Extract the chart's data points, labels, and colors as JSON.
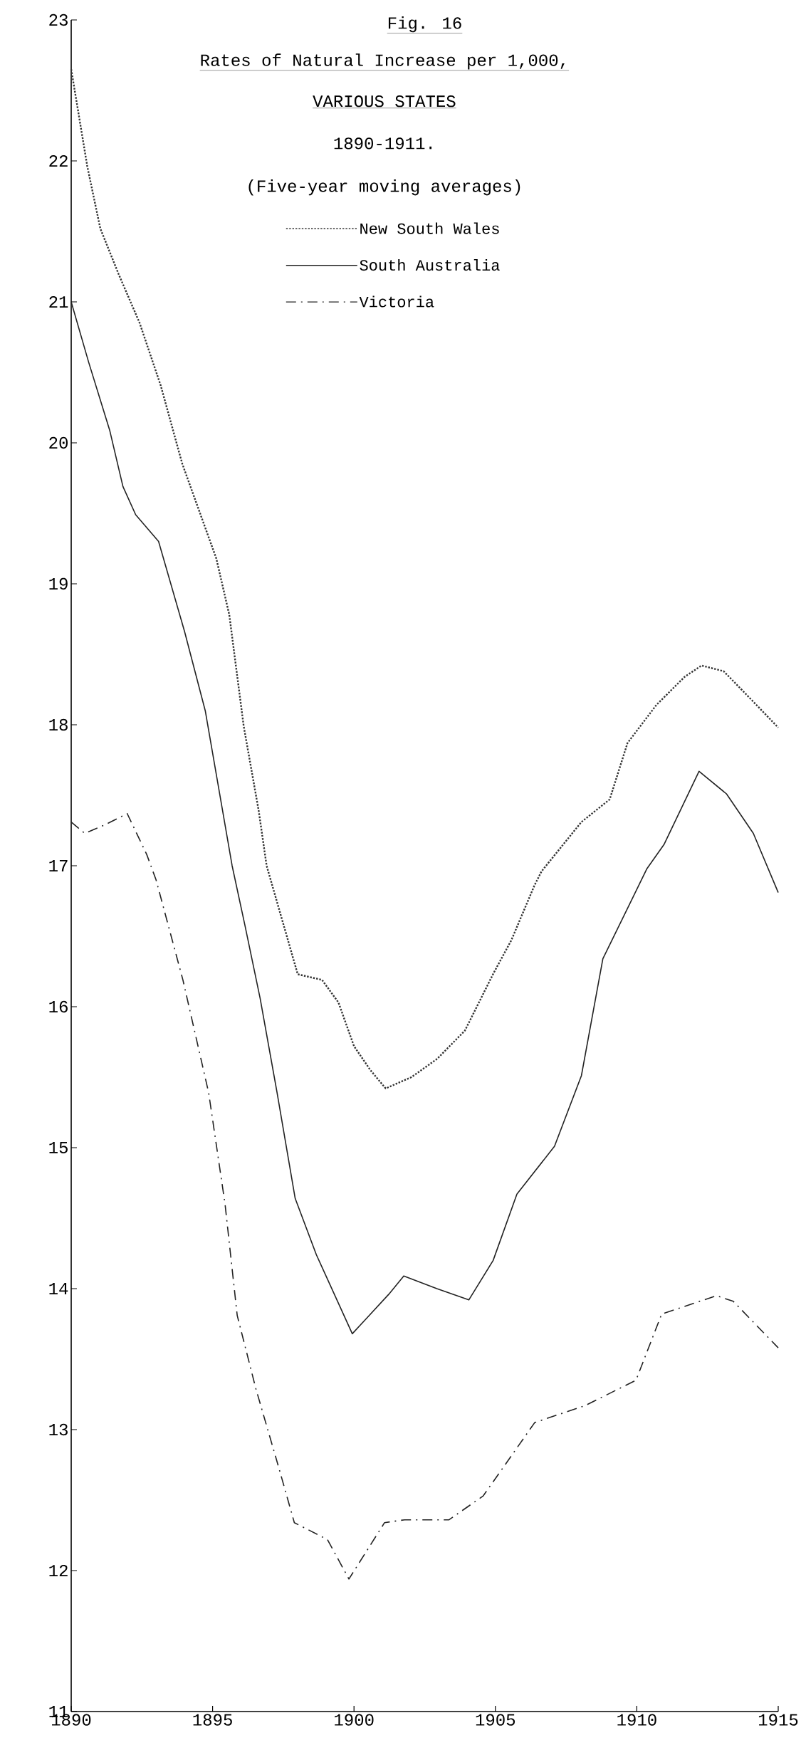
{
  "chart_data": {
    "type": "line",
    "title": "Rates of Natural Increase per 1,000,",
    "subtitle": "VARIOUS STATES",
    "annotations": [
      "Fig. 16",
      "1890-1911.",
      "(Five-year moving averages)"
    ],
    "xlim": [
      1890,
      1915
    ],
    "xticks": [
      1890,
      1895,
      1900,
      1905,
      1910,
      1915
    ],
    "ylim": [
      11,
      23
    ],
    "yticks": [
      11,
      12,
      13,
      14,
      15,
      16,
      17,
      18,
      19,
      20,
      21,
      22,
      23
    ],
    "grid": false,
    "legend": "top",
    "marker": "none",
    "series": [
      {
        "name": "New South Wales",
        "color": "#333333",
        "line_style": "dotted",
        "x": [
          1890,
          1890.57,
          1891.03,
          1891.67,
          1892.42,
          1893.16,
          1893.93,
          1895.13,
          1895.59,
          1896.1,
          1896.63,
          1896.91,
          1898.01,
          1898.87,
          1899.45,
          1900.0,
          1900.58,
          1901.12,
          1902.03,
          1902.94,
          1903.92,
          1904.94,
          1905.56,
          1906.38,
          1906.63,
          1908.04,
          1909.04,
          1909.67,
          1910.69,
          1911.69,
          1912.29,
          1913.07,
          1914.04,
          1915.0
        ],
        "values": [
          22.65,
          21.96,
          21.52,
          21.2,
          20.85,
          20.41,
          19.85,
          19.18,
          18.78,
          17.99,
          17.39,
          17.0,
          16.23,
          16.19,
          16.03,
          15.72,
          15.55,
          15.42,
          15.5,
          15.63,
          15.83,
          16.24,
          16.47,
          16.86,
          16.96,
          17.31,
          17.47,
          17.87,
          18.14,
          18.34,
          18.42,
          18.38,
          18.18,
          17.98
        ]
      },
      {
        "name": "South Australia",
        "color": "#222222",
        "line_style": "solid",
        "x": [
          1890,
          1890.62,
          1891.36,
          1891.83,
          1892.28,
          1893.09,
          1894.01,
          1894.74,
          1895.69,
          1896.14,
          1896.68,
          1897.28,
          1897.92,
          1898.67,
          1899.94,
          1901.23,
          1901.76,
          1902.93,
          1904.06,
          1904.92,
          1905.76,
          1907.09,
          1908.04,
          1908.8,
          1910.36,
          1910.96,
          1912.2,
          1913.17,
          1914.12,
          1915.0
        ],
        "values": [
          21.0,
          20.57,
          20.09,
          19.69,
          19.49,
          19.3,
          18.66,
          18.1,
          17.0,
          16.58,
          16.06,
          15.39,
          14.64,
          14.24,
          13.68,
          13.96,
          14.09,
          14.0,
          13.92,
          14.2,
          14.67,
          15.01,
          15.51,
          16.34,
          16.98,
          17.15,
          17.67,
          17.51,
          17.23,
          16.81
        ]
      },
      {
        "name": "Victoria",
        "color": "#222222",
        "line_style": "dashdot",
        "x": [
          1890,
          1890.48,
          1891.19,
          1891.98,
          1892.67,
          1893.0,
          1893.95,
          1894.86,
          1895.44,
          1895.87,
          1896.53,
          1897.34,
          1897.89,
          1899.06,
          1899.82,
          1901.08,
          1901.79,
          1903.36,
          1904.57,
          1906.39,
          1908.17,
          1909.97,
          1910.88,
          1912.82,
          1913.41,
          1915.0
        ],
        "values": [
          17.31,
          17.23,
          17.29,
          17.37,
          17.08,
          16.9,
          16.19,
          15.39,
          14.6,
          13.81,
          13.29,
          12.73,
          12.34,
          12.22,
          11.94,
          12.34,
          12.36,
          12.36,
          12.53,
          13.05,
          13.17,
          13.35,
          13.82,
          13.95,
          13.91,
          13.58
        ]
      }
    ]
  }
}
